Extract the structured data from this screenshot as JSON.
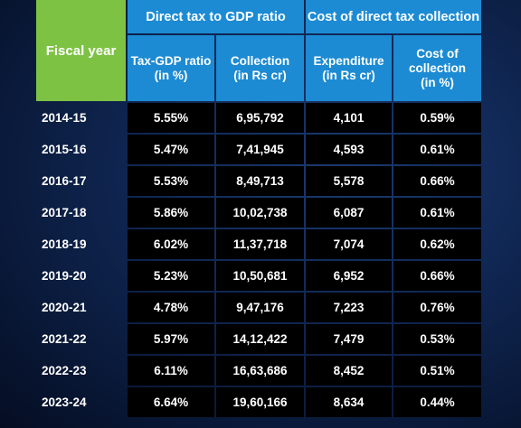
{
  "header": {
    "fiscal_year": "Fiscal year",
    "group1": "Direct tax to GDP ratio",
    "group2": "Cost of direct tax collection",
    "col1": "Tax-GDP ratio\n(in %)",
    "col2": "Collection\n(in Rs cr)",
    "col3": "Expenditure\n(in Rs cr)",
    "col4": "Cost of\ncollection\n(in %)"
  },
  "rows": [
    {
      "year": "2014-15",
      "ratio": "5.55%",
      "collection": "6,95,792",
      "expenditure": "4,101",
      "cost": "0.59%"
    },
    {
      "year": "2015-16",
      "ratio": "5.47%",
      "collection": "7,41,945",
      "expenditure": "4,593",
      "cost": "0.61%"
    },
    {
      "year": "2016-17",
      "ratio": "5.53%",
      "collection": "8,49,713",
      "expenditure": "5,578",
      "cost": "0.66%"
    },
    {
      "year": "2017-18",
      "ratio": "5.86%",
      "collection": "10,02,738",
      "expenditure": "6,087",
      "cost": "0.61%"
    },
    {
      "year": "2018-19",
      "ratio": "6.02%",
      "collection": "11,37,718",
      "expenditure": "7,074",
      "cost": "0.62%"
    },
    {
      "year": "2019-20",
      "ratio": "5.23%",
      "collection": "10,50,681",
      "expenditure": "6,952",
      "cost": "0.66%"
    },
    {
      "year": "2020-21",
      "ratio": "4.78%",
      "collection": "9,47,176",
      "expenditure": "7,223",
      "cost": "0.76%"
    },
    {
      "year": "2021-22",
      "ratio": "5.97%",
      "collection": "14,12,422",
      "expenditure": "7,479",
      "cost": "0.53%"
    },
    {
      "year": "2022-23",
      "ratio": "6.11%",
      "collection": "16,63,686",
      "expenditure": "8,452",
      "cost": "0.51%"
    },
    {
      "year": "2023-24",
      "ratio": "6.64%",
      "collection": "19,60,166",
      "expenditure": "8,634",
      "cost": "0.44%"
    }
  ],
  "colors": {
    "header_green": "#7ec244",
    "header_blue": "#1c8bd3",
    "cell_bg": "#000000",
    "text": "#ffffff"
  }
}
